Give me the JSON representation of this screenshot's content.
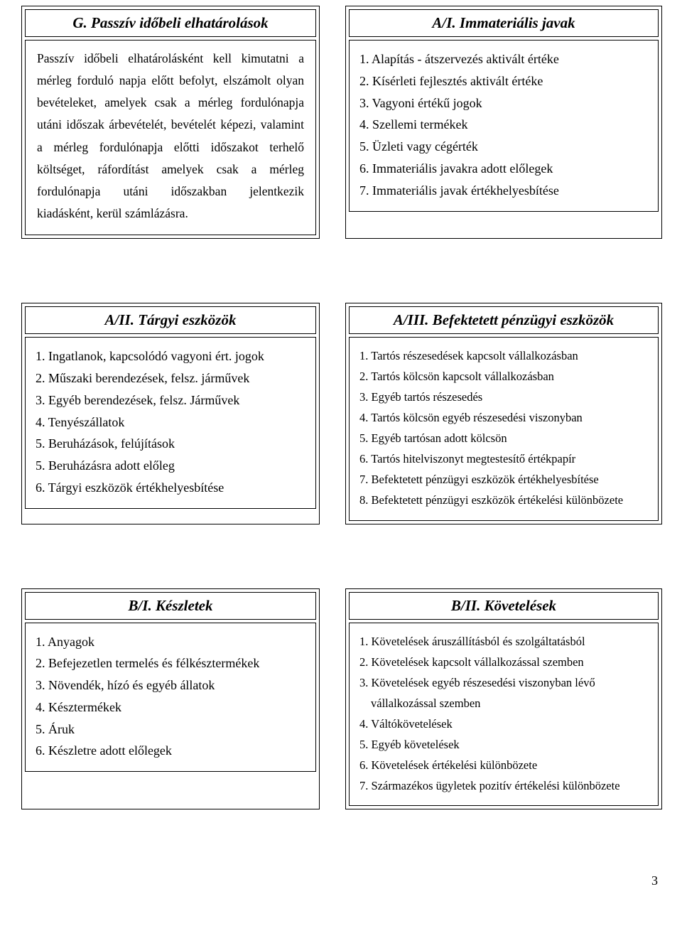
{
  "page_number": "3",
  "boxes": {
    "g": {
      "title": "G. Passzív időbeli elhatárolások",
      "paragraph": "Passzív időbeli elhatárolásként kell kimutatni a mérleg forduló napja előtt befolyt, elszámolt olyan bevételeket, amelyek csak a mérleg fordulónapja utáni időszak árbevételét, bevételét képezi, valamint a mérleg fordulónapja előtti időszakot terhelő költséget, ráfordítást amelyek csak a mérleg fordulónapja utáni időszakban jelentkezik kiadásként, kerül számlázásra."
    },
    "a1": {
      "title": "A/I. Immateriális javak",
      "items": [
        "1. Alapítás - átszervezés aktivált értéke",
        "2. Kísérleti fejlesztés aktivált értéke",
        "3. Vagyoni értékű jogok",
        "4. Szellemi termékek",
        "5. Üzleti vagy cégérték",
        "6. Immateriális javakra adott előlegek",
        "7. Immateriális javak értékhelyesbítése"
      ]
    },
    "a2": {
      "title": "A/II. Tárgyi eszközök",
      "items": [
        "1. Ingatlanok, kapcsolódó vagyoni ért. jogok",
        "2. Műszaki berendezések, felsz. járművek",
        "3. Egyéb berendezések, felsz. Járművek",
        "4. Tenyészállatok",
        "5. Beruházások, felújítások",
        "5. Beruházásra adott előleg",
        "6. Tárgyi eszközök értékhelyesbítése"
      ]
    },
    "a3": {
      "title": "A/III. Befektetett pénzügyi eszközök",
      "items": [
        "1. Tartós részesedések kapcsolt vállalkozásban",
        "2. Tartós kölcsön kapcsolt vállalkozásban",
        "3. Egyéb tartós részesedés",
        "4. Tartós kölcsön egyéb részesedési viszonyban",
        "5. Egyéb tartósan adott kölcsön",
        "6. Tartós hitelviszonyt megtestesítő értékpapír",
        "7. Befektetett pénzügyi eszközök értékhelyesbítése",
        "8. Befektetett pénzügyi eszközök értékelési különbözete"
      ]
    },
    "b1": {
      "title": "B/I. Készletek",
      "items": [
        "1. Anyagok",
        "2. Befejezetlen termelés és félkésztermékek",
        "3. Növendék, hízó és egyéb állatok",
        "4. Késztermékek",
        "5. Áruk",
        "6. Készletre adott előlegek"
      ]
    },
    "b2": {
      "title": "B/II. Követelések",
      "items": [
        "1. Követelések áruszállításból és szolgáltatásból",
        "2. Követelések kapcsolt vállalkozással szemben",
        "3. Követelések egyéb részesedési viszonyban lévő",
        "vállalkozással szemben",
        "4. Váltókövetelések",
        "5. Egyéb követelések",
        "6. Követelések értékelési különbözete",
        "7. Származékos ügyletek pozitív értékelési különbözete"
      ]
    }
  }
}
